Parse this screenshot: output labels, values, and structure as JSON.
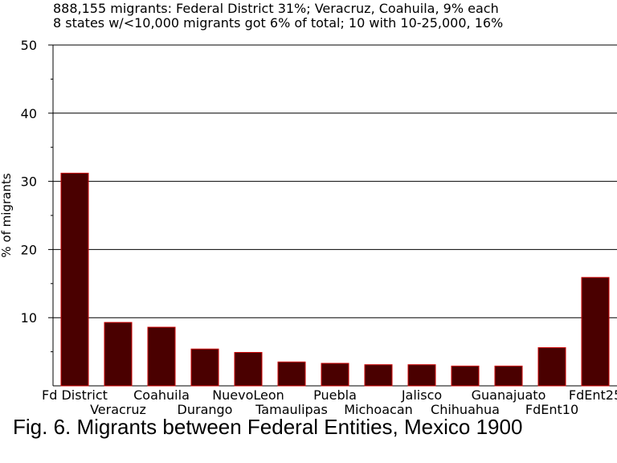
{
  "chart_data": {
    "type": "bar",
    "subtitle_lines": [
      "888,155 migrants: Federal District 31%; Veracruz, Coahuila, 9% each",
      "8 states w/<10,000 migrants got 6% of total; 10 with 10-25,000, 16%"
    ],
    "ylabel": "% of migrants",
    "xlabel": "",
    "caption": "Fig. 6. Migrants between Federal Entities, Mexico 1900",
    "ylim": [
      0,
      50
    ],
    "yticks": [
      10,
      20,
      30,
      40,
      50
    ],
    "grid": true,
    "categories": [
      "Fd District",
      "Veracruz",
      "Coahuila",
      "Durango",
      "NuevoLeon",
      "Tamaulipas",
      "Puebla",
      "Michoacan",
      "Jalisco",
      "Chihuahua",
      "Guanajuato",
      "FdEnt10",
      "FdEnt25"
    ],
    "values": [
      31.2,
      9.3,
      8.6,
      5.4,
      4.9,
      3.5,
      3.3,
      3.1,
      3.1,
      2.9,
      2.9,
      5.6,
      15.9
    ],
    "colors": {
      "bar_fill": "#4a0000",
      "bar_stroke": "#cc0000",
      "axis": "#000000",
      "grid": "#000000"
    }
  }
}
